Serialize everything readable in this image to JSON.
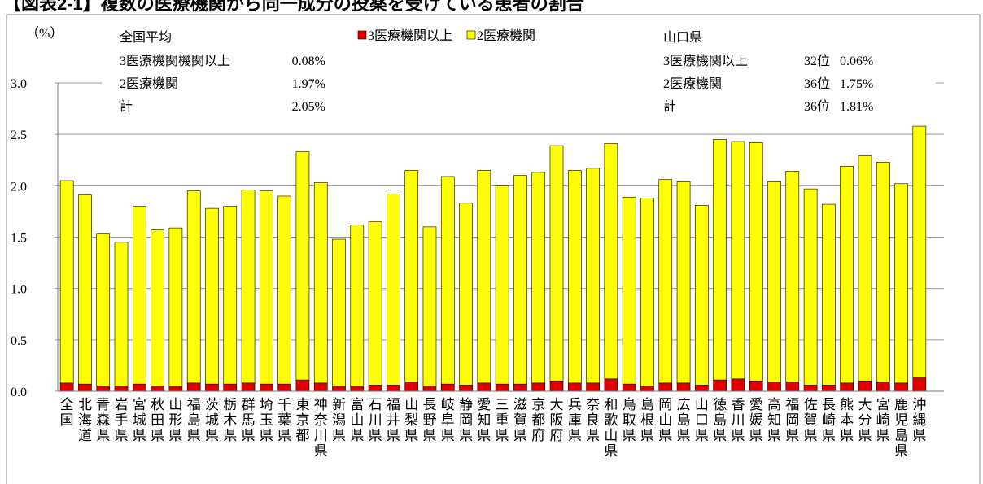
{
  "chart_data": {
    "type": "stacked_bar",
    "title": "【図表2-1】複数の医療機関から同一成分の投薬を受けている患者の割合",
    "ylabel": "（%）",
    "categories": [
      "全国",
      "北海道",
      "青森県",
      "岩手県",
      "宮城県",
      "秋田県",
      "山形県",
      "福島県",
      "茨城県",
      "栃木県",
      "群馬県",
      "埼玉県",
      "千葉県",
      "東京都",
      "神奈川県",
      "新潟県",
      "富山県",
      "石川県",
      "福井県",
      "山梨県",
      "長野県",
      "岐阜県",
      "静岡県",
      "愛知県",
      "三重県",
      "滋賀県",
      "京都府",
      "大阪府",
      "兵庫県",
      "奈良県",
      "和歌山県",
      "鳥取県",
      "島根県",
      "岡山県",
      "広島県",
      "山口県",
      "徳島県",
      "香川県",
      "愛媛県",
      "高知県",
      "福岡県",
      "佐賀県",
      "長崎県",
      "熊本県",
      "大分県",
      "宮崎県",
      "鹿児島県",
      "沖縄県"
    ],
    "series": [
      {
        "name": "3医療機関以上",
        "color": "#e00000",
        "values": [
          0.08,
          0.07,
          0.05,
          0.05,
          0.07,
          0.05,
          0.05,
          0.08,
          0.07,
          0.07,
          0.08,
          0.07,
          0.07,
          0.11,
          0.08,
          0.05,
          0.05,
          0.06,
          0.06,
          0.09,
          0.05,
          0.07,
          0.06,
          0.08,
          0.07,
          0.07,
          0.08,
          0.1,
          0.08,
          0.08,
          0.12,
          0.07,
          0.05,
          0.08,
          0.08,
          0.06,
          0.11,
          0.12,
          0.1,
          0.09,
          0.09,
          0.06,
          0.06,
          0.08,
          0.1,
          0.09,
          0.08,
          0.13
        ]
      },
      {
        "name": "2医療機関",
        "color": "#ffff00",
        "values": [
          1.97,
          1.84,
          1.48,
          1.4,
          1.73,
          1.52,
          1.54,
          1.87,
          1.71,
          1.73,
          1.88,
          1.88,
          1.83,
          2.22,
          1.95,
          1.43,
          1.57,
          1.59,
          1.86,
          2.06,
          1.55,
          2.02,
          1.77,
          2.07,
          1.93,
          2.03,
          2.05,
          2.29,
          2.07,
          2.09,
          2.29,
          1.82,
          1.83,
          1.98,
          1.96,
          1.75,
          2.34,
          2.31,
          2.32,
          1.95,
          2.05,
          1.91,
          1.76,
          2.11,
          2.19,
          2.14,
          1.94,
          2.45
        ]
      }
    ],
    "ylim": [
      0,
      3.0
    ],
    "yticks": [
      {
        "value": 0,
        "label": "0.0"
      },
      {
        "value": 0.5,
        "label": "0.5"
      },
      {
        "value": 1,
        "label": "1.0"
      },
      {
        "value": 1.5,
        "label": "1.5"
      },
      {
        "value": 2,
        "label": "2.0"
      },
      {
        "value": 2.5,
        "label": "2.5"
      },
      {
        "value": 3,
        "label": "3.0"
      }
    ],
    "grid": true,
    "annotations": [
      {
        "title": "全国平均",
        "rows": [
          [
            "3医療機関機関以上",
            "0.08%"
          ],
          [
            "2医療機関",
            "1.97%"
          ],
          [
            "計",
            "2.05%"
          ]
        ]
      },
      {
        "title": "山口県",
        "rows": [
          [
            "3医療機関以上",
            "32位",
            "0.06%"
          ],
          [
            "2医療機関",
            "36位",
            "1.75%"
          ],
          [
            "計",
            "36位",
            "1.81%"
          ]
        ]
      }
    ]
  }
}
